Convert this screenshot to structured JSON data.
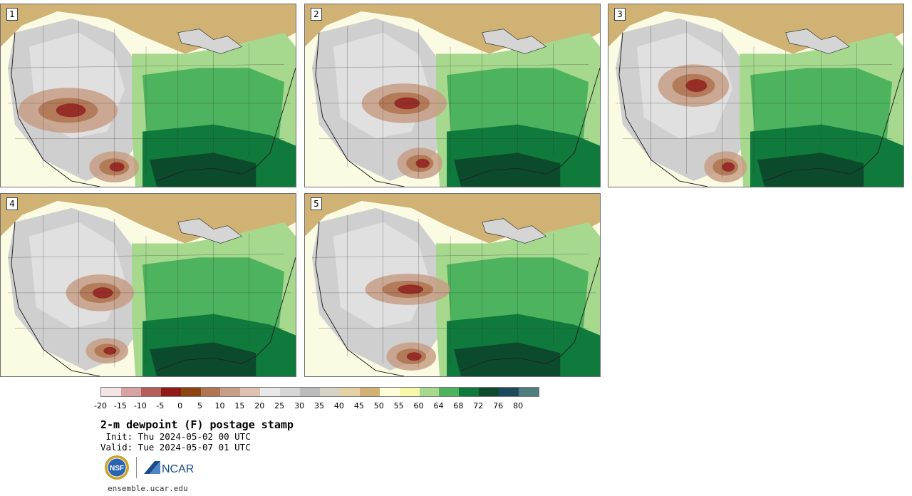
{
  "page": {
    "title": "2-m dewpoint (F) postage stamp",
    "init": " Init: Thu 2024-05-02 00 UTC",
    "valid": "Valid: Tue 2024-05-07 01 UTC",
    "footer_url": "ensemble.ucar.edu"
  },
  "panels": [
    {
      "label": "1"
    },
    {
      "label": "2"
    },
    {
      "label": "3"
    },
    {
      "label": "4"
    },
    {
      "label": "5"
    }
  ],
  "colorbar": {
    "colors": [
      "#f3e5e5",
      "#d8a3a3",
      "#b45e5e",
      "#8e1a1a",
      "#8c4412",
      "#b07552",
      "#c79e86",
      "#dfc3b2",
      "#e8e8e8",
      "#d5d5d5",
      "#bbbbbb",
      "#d6d2c4",
      "#e4d2a4",
      "#cfb274",
      "#fffdd9",
      "#f6f7a8",
      "#a6d98e",
      "#4db35e",
      "#0f7a3b",
      "#0b4b2c",
      "#1d4a5a",
      "#4f7c7c"
    ],
    "tick_labels": [
      "-20",
      "-15",
      "-10",
      "-5",
      "0",
      "5",
      "10",
      "15",
      "20",
      "25",
      "30",
      "35",
      "40",
      "45",
      "50",
      "55",
      "60",
      "64",
      "68",
      "72",
      "76",
      "80"
    ]
  },
  "logos": {
    "nsf": "NSF",
    "ncar": "NCAR"
  }
}
